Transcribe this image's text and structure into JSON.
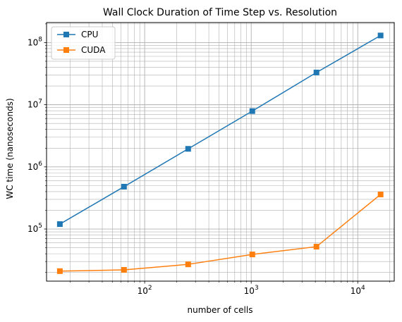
{
  "chart_data": {
    "type": "line",
    "title": "Wall Clock Duration of Time Step vs. Resolution",
    "xlabel": "number of cells",
    "ylabel": "WC time (nanoseconds)",
    "xscale": "log",
    "yscale": "log",
    "xlim": [
      12,
      22000
    ],
    "ylim": [
      14500,
      210000000
    ],
    "x_ticks": [
      {
        "value": 100,
        "base": "10",
        "exp": "2"
      },
      {
        "value": 1000,
        "base": "10",
        "exp": "3"
      },
      {
        "value": 10000,
        "base": "10",
        "exp": "4"
      }
    ],
    "y_ticks": [
      {
        "value": 100000,
        "base": "10",
        "exp": "5"
      },
      {
        "value": 1000000,
        "base": "10",
        "exp": "6"
      },
      {
        "value": 10000000,
        "base": "10",
        "exp": "7"
      },
      {
        "value": 100000000,
        "base": "10",
        "exp": "8"
      }
    ],
    "grid": "both (major and minor)",
    "legend_position": "upper-left",
    "x": [
      16,
      64,
      256,
      1024,
      4096,
      16384
    ],
    "series": [
      {
        "name": "CPU",
        "color": "#1f77b4",
        "marker": "square",
        "values": [
          120000,
          480000,
          1950000,
          7900000,
          33000000,
          130000000
        ]
      },
      {
        "name": "CUDA",
        "color": "#ff7f0e",
        "marker": "square",
        "values": [
          21000,
          22000,
          27000,
          39000,
          52000,
          360000
        ]
      }
    ]
  }
}
